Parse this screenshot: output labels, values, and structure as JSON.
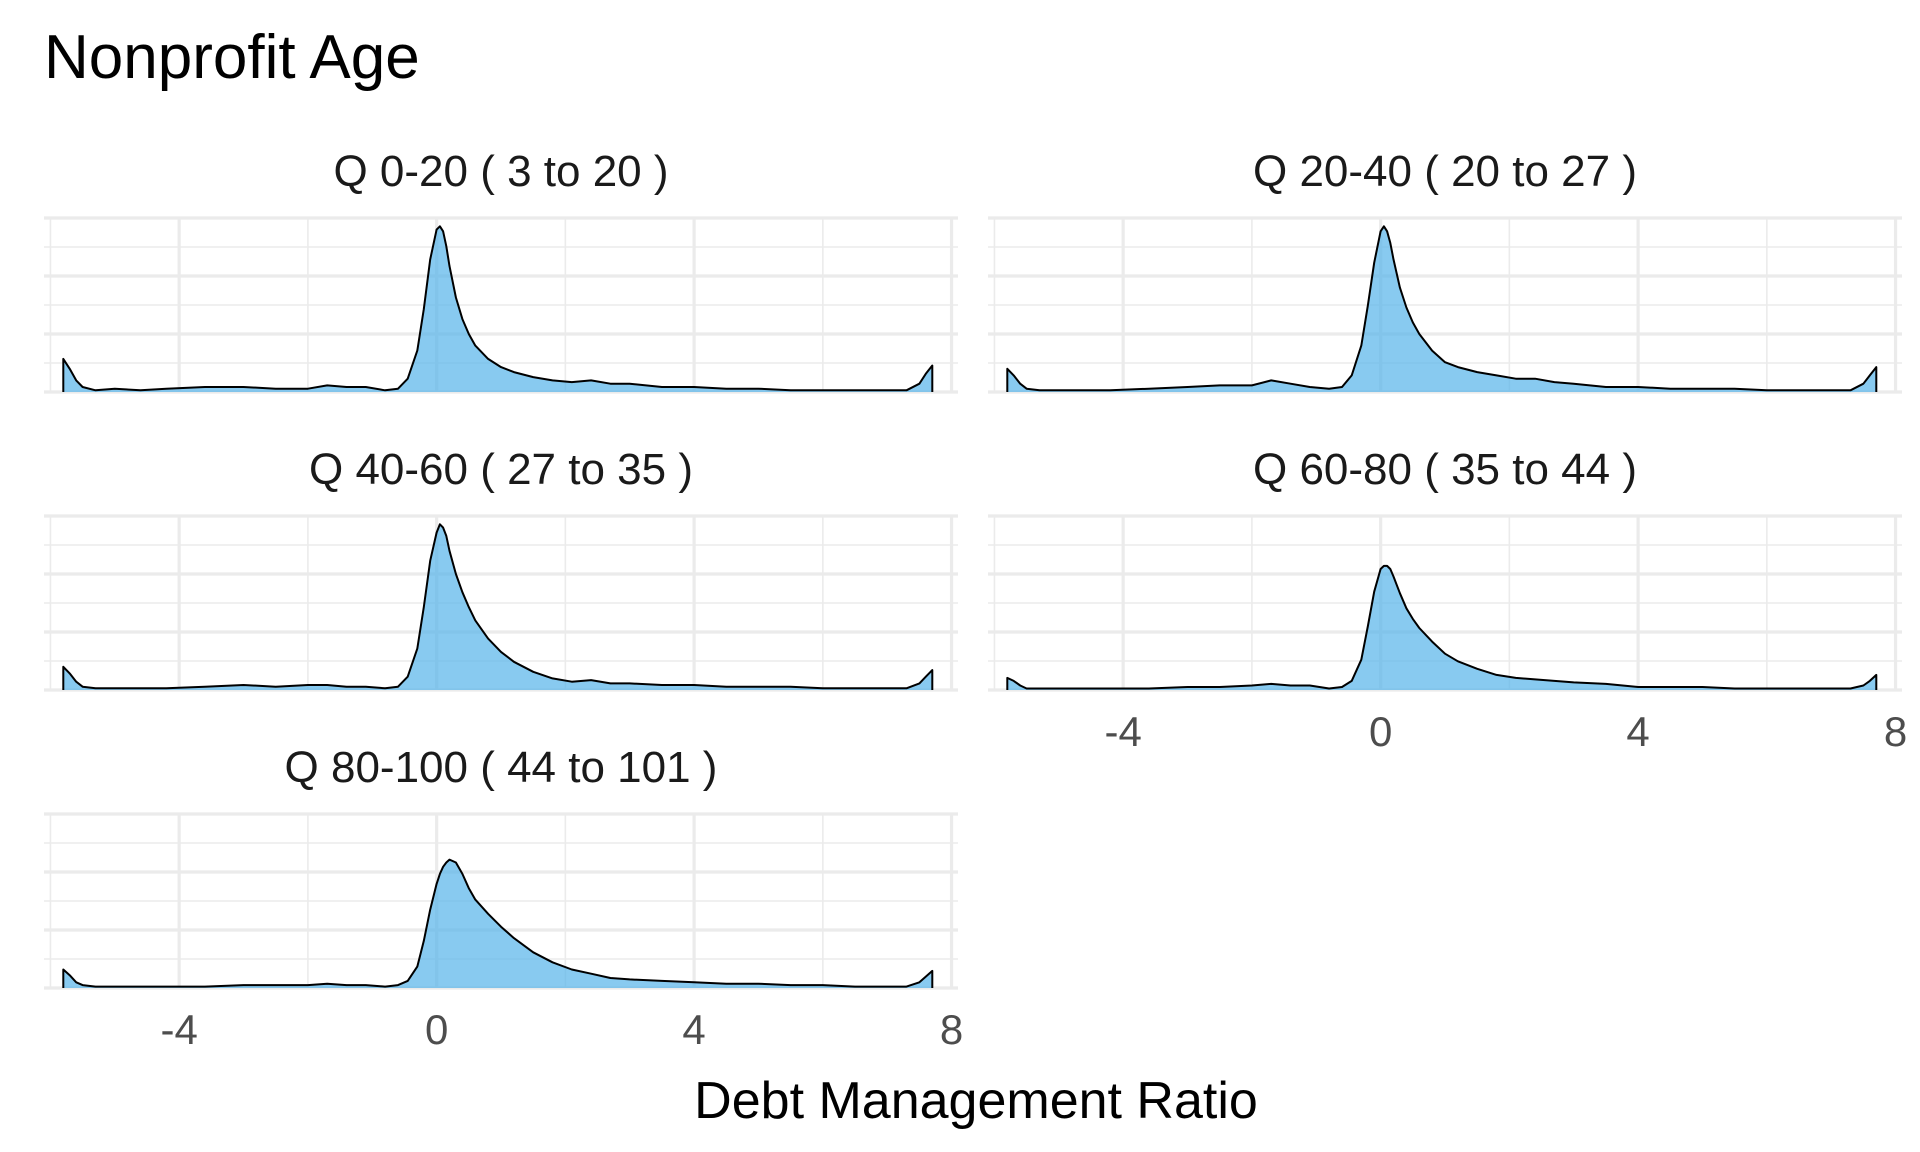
{
  "title": "Nonprofit Age",
  "colors": {
    "fill": "#56B4E9",
    "fill_opacity": 0.7,
    "line": "#000000",
    "grid": "#ebebeb"
  },
  "chart_data": {
    "type": "area",
    "subtype": "density (faceted)",
    "title": "Nonprofit Age",
    "xlabel": "Debt Management Ratio",
    "ylabel": "",
    "xlim": [
      -6.1,
      8.1
    ],
    "x_ticks": [
      -4,
      0,
      4,
      8
    ],
    "x_tick_labels": [
      "-4",
      "0",
      "4",
      "8"
    ],
    "grid": true,
    "panels": [
      {
        "label": "Q 0-20   ( 3 to 20 )",
        "ylim": [
          0,
          1.05
        ],
        "x": [
          -5.8,
          -5.7,
          -5.6,
          -5.5,
          -5.3,
          -5.0,
          -4.6,
          -4.2,
          -3.6,
          -3.0,
          -2.5,
          -2.0,
          -1.7,
          -1.4,
          -1.1,
          -0.8,
          -0.6,
          -0.45,
          -0.3,
          -0.2,
          -0.1,
          0.0,
          0.05,
          0.1,
          0.15,
          0.2,
          0.3,
          0.4,
          0.5,
          0.6,
          0.8,
          1.0,
          1.2,
          1.5,
          1.8,
          2.1,
          2.4,
          2.7,
          3.0,
          3.5,
          4.0,
          4.5,
          5.0,
          5.5,
          6.0,
          6.5,
          7.0,
          7.3,
          7.5,
          7.6,
          7.7
        ],
        "y": [
          0.2,
          0.14,
          0.07,
          0.03,
          0.01,
          0.02,
          0.01,
          0.02,
          0.03,
          0.03,
          0.02,
          0.02,
          0.04,
          0.03,
          0.03,
          0.01,
          0.02,
          0.08,
          0.25,
          0.5,
          0.8,
          0.98,
          1.0,
          0.97,
          0.88,
          0.76,
          0.57,
          0.44,
          0.35,
          0.28,
          0.2,
          0.15,
          0.12,
          0.09,
          0.07,
          0.06,
          0.07,
          0.05,
          0.05,
          0.03,
          0.03,
          0.02,
          0.02,
          0.01,
          0.01,
          0.01,
          0.01,
          0.01,
          0.05,
          0.11,
          0.16
        ]
      },
      {
        "label": "Q 20-40   ( 20 to 27 )",
        "ylim": [
          0,
          1.05
        ],
        "x": [
          -5.8,
          -5.7,
          -5.6,
          -5.5,
          -5.3,
          -5.0,
          -4.6,
          -4.2,
          -3.6,
          -3.0,
          -2.5,
          -2.0,
          -1.7,
          -1.4,
          -1.1,
          -0.8,
          -0.6,
          -0.45,
          -0.3,
          -0.2,
          -0.1,
          0.0,
          0.05,
          0.1,
          0.15,
          0.2,
          0.3,
          0.4,
          0.5,
          0.6,
          0.8,
          1.0,
          1.2,
          1.5,
          1.8,
          2.1,
          2.4,
          2.7,
          3.0,
          3.5,
          4.0,
          4.5,
          5.0,
          5.5,
          6.0,
          6.5,
          7.0,
          7.3,
          7.5,
          7.6,
          7.7
        ],
        "y": [
          0.14,
          0.1,
          0.05,
          0.02,
          0.01,
          0.01,
          0.01,
          0.01,
          0.02,
          0.03,
          0.04,
          0.04,
          0.07,
          0.05,
          0.03,
          0.02,
          0.03,
          0.1,
          0.28,
          0.52,
          0.78,
          0.97,
          1.0,
          0.97,
          0.9,
          0.8,
          0.63,
          0.51,
          0.42,
          0.35,
          0.25,
          0.18,
          0.15,
          0.12,
          0.1,
          0.08,
          0.08,
          0.06,
          0.05,
          0.03,
          0.03,
          0.02,
          0.02,
          0.02,
          0.01,
          0.01,
          0.01,
          0.01,
          0.05,
          0.1,
          0.15
        ]
      },
      {
        "label": "Q 40-60   ( 27 to 35 )",
        "ylim": [
          0,
          1.05
        ],
        "x": [
          -5.8,
          -5.7,
          -5.6,
          -5.5,
          -5.3,
          -5.0,
          -4.6,
          -4.2,
          -3.6,
          -3.0,
          -2.5,
          -2.0,
          -1.7,
          -1.4,
          -1.1,
          -0.8,
          -0.6,
          -0.45,
          -0.3,
          -0.2,
          -0.1,
          0.0,
          0.05,
          0.1,
          0.15,
          0.2,
          0.3,
          0.4,
          0.5,
          0.6,
          0.8,
          1.0,
          1.2,
          1.5,
          1.8,
          2.1,
          2.4,
          2.7,
          3.0,
          3.5,
          4.0,
          4.5,
          5.0,
          5.5,
          6.0,
          6.5,
          7.0,
          7.3,
          7.5,
          7.6,
          7.7
        ],
        "y": [
          0.14,
          0.1,
          0.05,
          0.02,
          0.01,
          0.01,
          0.01,
          0.01,
          0.02,
          0.03,
          0.02,
          0.03,
          0.03,
          0.02,
          0.02,
          0.01,
          0.02,
          0.08,
          0.25,
          0.5,
          0.78,
          0.95,
          1.0,
          0.98,
          0.93,
          0.84,
          0.7,
          0.59,
          0.5,
          0.42,
          0.31,
          0.23,
          0.17,
          0.11,
          0.07,
          0.05,
          0.06,
          0.04,
          0.04,
          0.03,
          0.03,
          0.02,
          0.02,
          0.02,
          0.01,
          0.01,
          0.01,
          0.01,
          0.04,
          0.08,
          0.12
        ]
      },
      {
        "label": "Q 60-80   ( 35 to 44 )",
        "ylim": [
          0,
          1.15
        ],
        "x": [
          -5.8,
          -5.7,
          -5.6,
          -5.5,
          -5.3,
          -5.0,
          -4.6,
          -4.2,
          -3.6,
          -3.0,
          -2.5,
          -2.0,
          -1.7,
          -1.4,
          -1.1,
          -0.8,
          -0.6,
          -0.45,
          -0.3,
          -0.2,
          -0.1,
          0.0,
          0.05,
          0.1,
          0.15,
          0.2,
          0.3,
          0.4,
          0.5,
          0.6,
          0.8,
          1.0,
          1.2,
          1.5,
          1.8,
          2.1,
          2.4,
          2.7,
          3.0,
          3.5,
          4.0,
          4.5,
          5.0,
          5.5,
          6.0,
          6.5,
          7.0,
          7.3,
          7.5,
          7.6,
          7.7
        ],
        "y": [
          0.08,
          0.06,
          0.03,
          0.01,
          0.01,
          0.01,
          0.01,
          0.01,
          0.01,
          0.02,
          0.02,
          0.03,
          0.04,
          0.03,
          0.03,
          0.01,
          0.02,
          0.06,
          0.2,
          0.42,
          0.65,
          0.8,
          0.82,
          0.82,
          0.8,
          0.75,
          0.64,
          0.54,
          0.47,
          0.41,
          0.32,
          0.24,
          0.19,
          0.14,
          0.1,
          0.08,
          0.07,
          0.06,
          0.05,
          0.04,
          0.02,
          0.02,
          0.02,
          0.01,
          0.01,
          0.01,
          0.01,
          0.01,
          0.03,
          0.06,
          0.1
        ]
      },
      {
        "label": "Q 80-100   ( 44 to 101 )",
        "ylim": [
          0,
          1.22
        ],
        "x": [
          -5.8,
          -5.7,
          -5.6,
          -5.5,
          -5.3,
          -5.0,
          -4.6,
          -4.2,
          -3.6,
          -3.0,
          -2.5,
          -2.0,
          -1.7,
          -1.4,
          -1.1,
          -0.8,
          -0.6,
          -0.45,
          -0.3,
          -0.2,
          -0.1,
          0.0,
          0.05,
          0.1,
          0.15,
          0.2,
          0.3,
          0.4,
          0.5,
          0.6,
          0.8,
          1.0,
          1.2,
          1.5,
          1.8,
          2.1,
          2.4,
          2.7,
          3.0,
          3.5,
          4.0,
          4.5,
          5.0,
          5.5,
          6.0,
          6.5,
          7.0,
          7.3,
          7.5,
          7.6,
          7.7
        ],
        "y": [
          0.13,
          0.09,
          0.04,
          0.02,
          0.01,
          0.01,
          0.01,
          0.01,
          0.01,
          0.02,
          0.02,
          0.02,
          0.03,
          0.02,
          0.02,
          0.01,
          0.02,
          0.05,
          0.15,
          0.33,
          0.55,
          0.73,
          0.8,
          0.85,
          0.88,
          0.9,
          0.88,
          0.8,
          0.7,
          0.62,
          0.52,
          0.43,
          0.35,
          0.25,
          0.18,
          0.13,
          0.1,
          0.07,
          0.06,
          0.05,
          0.04,
          0.03,
          0.03,
          0.02,
          0.02,
          0.01,
          0.01,
          0.01,
          0.04,
          0.08,
          0.12
        ]
      }
    ]
  }
}
